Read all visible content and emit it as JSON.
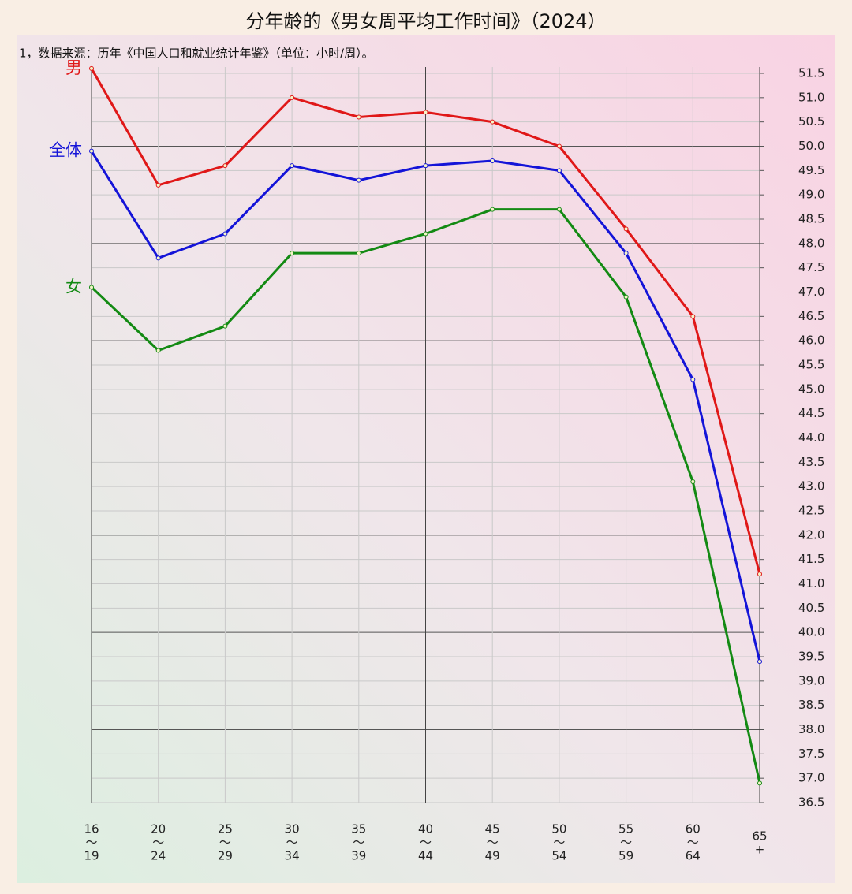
{
  "chart_data": {
    "type": "line",
    "title": "分年龄的《男女周平均工作时间》（2024）",
    "subtitle": "1，数据来源：历年《中国人口和就业统计年鉴》（单位：小时/周）。",
    "categories": [
      [
        "16",
        "～",
        "19"
      ],
      [
        "20",
        "～",
        "24"
      ],
      [
        "25",
        "～",
        "29"
      ],
      [
        "30",
        "～",
        "34"
      ],
      [
        "35",
        "～",
        "39"
      ],
      [
        "40",
        "～",
        "44"
      ],
      [
        "45",
        "～",
        "49"
      ],
      [
        "50",
        "～",
        "54"
      ],
      [
        "55",
        "～",
        "59"
      ],
      [
        "60",
        "～",
        "64"
      ],
      [
        "65",
        "+"
      ]
    ],
    "series": [
      {
        "name": "男",
        "color": "#e01818",
        "values": [
          51.6,
          49.2,
          49.6,
          51.0,
          50.6,
          50.7,
          50.5,
          50.0,
          48.3,
          46.5,
          41.2
        ]
      },
      {
        "name": "全体",
        "color": "#1414d8",
        "values": [
          49.9,
          47.7,
          48.2,
          49.6,
          49.3,
          49.6,
          49.7,
          49.5,
          47.8,
          45.2,
          39.4
        ]
      },
      {
        "name": "女",
        "color": "#138a13",
        "values": [
          47.1,
          45.8,
          46.3,
          47.8,
          47.8,
          48.2,
          48.7,
          48.7,
          46.9,
          43.1,
          36.9
        ]
      }
    ],
    "ylim": [
      36.5,
      51.5
    ],
    "yticks": [
      36.5,
      {
        "value": 37,
        "label": "37.0"
      },
      37.5,
      {
        "value": 38,
        "label": "38.0"
      },
      38.5,
      {
        "value": 39,
        "label": "39.0"
      },
      39.5,
      {
        "value": 40,
        "label": "40.0"
      },
      40.5,
      {
        "value": 41,
        "label": "41.0"
      },
      41.5,
      {
        "value": 42,
        "label": "42.0"
      },
      42.5,
      {
        "value": 43,
        "label": "43.0"
      },
      43.5,
      {
        "value": 44,
        "label": "44.0"
      },
      44.5,
      {
        "value": 45,
        "label": "45.0"
      },
      45.5,
      {
        "value": 46,
        "label": "46.0"
      },
      46.5,
      {
        "value": 47,
        "label": "47.0"
      },
      47.5,
      {
        "value": 48,
        "label": "48.0"
      },
      48.5,
      {
        "value": 49,
        "label": "49.0"
      },
      49.5,
      {
        "value": 50,
        "label": "50.0"
      },
      50.5,
      {
        "value": 51,
        "label": "51.0"
      },
      51.5
    ],
    "grid": true
  }
}
